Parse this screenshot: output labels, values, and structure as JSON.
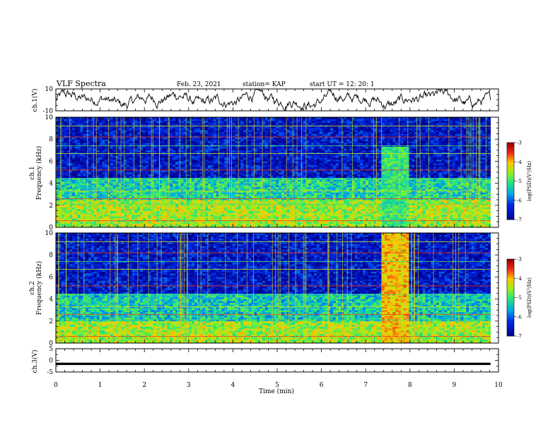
{
  "header": {
    "title": "VLF Spectra",
    "date": "Feb. 23, 2021",
    "station": "station= KAP",
    "start": "start  UT =   12: 20: 1"
  },
  "chart_data": [
    {
      "type": "line",
      "panel": "ch1-waveform",
      "ylabel": "ch.1(V)",
      "ylim": [
        -10,
        10
      ],
      "y_ticks": [
        "10",
        "-10"
      ],
      "xlim": [
        0,
        10
      ],
      "description_series": "noisy trace oscillating roughly between -8 and 8 V over 0-9.8 min"
    },
    {
      "type": "heatmap",
      "panel": "ch1-spectrogram",
      "ylabel": "ch.1\nFrequency  (kHz)",
      "ylim": [
        0,
        10
      ],
      "y_ticks": [
        "0",
        "2",
        "4",
        "6",
        "8",
        "10"
      ],
      "xlim": [
        0,
        10
      ],
      "colorbar": {
        "label": "log(PSD)(V²/Hz)",
        "range": [
          -7,
          -3
        ],
        "ticks": [
          "-3",
          "-4",
          "-5",
          "-6",
          "-7"
        ]
      },
      "bands_khz": [
        {
          "low": 0,
          "high": 2.5,
          "level": -4.5
        },
        {
          "low": 2.5,
          "high": 4.5,
          "level": -5.2
        },
        {
          "low": 4.5,
          "high": 10,
          "level": -6.5
        }
      ],
      "burst": {
        "t_start": 7.35,
        "t_end": 7.95,
        "f_low": 0,
        "f_high": 7.3,
        "level": -5.0
      }
    },
    {
      "type": "heatmap",
      "panel": "ch2-spectrogram",
      "ylabel": "ch.2\nFrequency  (kHz)",
      "ylim": [
        0,
        10
      ],
      "y_ticks": [
        "0",
        "2",
        "4",
        "6",
        "8",
        "10"
      ],
      "xlim": [
        0,
        10
      ],
      "colorbar": {
        "label": "log(PSD)(V²/Hz)",
        "range": [
          -7,
          -3
        ],
        "ticks": [
          "-3",
          "-4",
          "-5",
          "-6",
          "-7"
        ]
      },
      "bands_khz": [
        {
          "low": 0,
          "high": 2.0,
          "level": -4.5
        },
        {
          "low": 2.0,
          "high": 4.5,
          "level": -5.3
        },
        {
          "low": 4.5,
          "high": 10,
          "level": -6.5
        }
      ],
      "burst": {
        "t_start": 7.35,
        "t_end": 7.95,
        "f_low": 0,
        "f_high": 10,
        "level": -4.0
      }
    },
    {
      "type": "line",
      "panel": "ch3-waveform",
      "ylabel": "ch.3(V)",
      "ylim": [
        -5,
        5
      ],
      "y_ticks": [
        "5",
        "0",
        "-5"
      ],
      "xlim": [
        0,
        10
      ],
      "description_series": "flat thick trace near -1.5 V from 0 to 9.8 min"
    }
  ],
  "x_axis": {
    "label": "Time  (min)",
    "ticks": [
      "0",
      "1",
      "2",
      "3",
      "4",
      "5",
      "6",
      "7",
      "8",
      "9",
      "10"
    ]
  }
}
